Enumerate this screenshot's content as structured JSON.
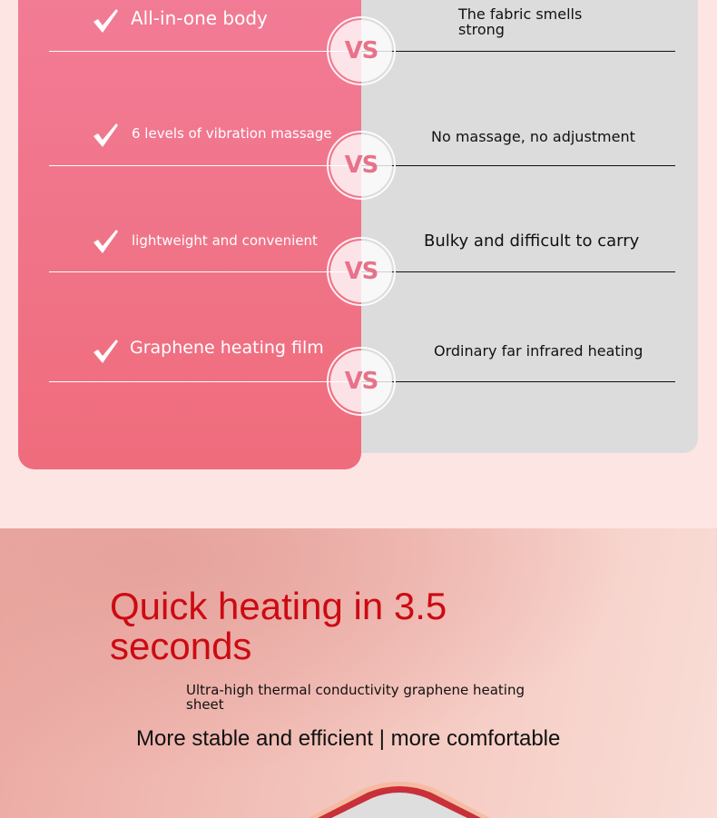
{
  "comparison": {
    "rows": [
      {
        "ours": "All-in-one body",
        "theirs": "The fabric smells strong",
        "vs": "VS"
      },
      {
        "ours": "6 levels of vibration massage",
        "theirs": "No massage, no adjustment",
        "vs": "VS"
      },
      {
        "ours": "lightweight and convenient",
        "theirs": "Bulky and difficult to carry",
        "vs": "VS"
      },
      {
        "ours": "Graphene heating film",
        "theirs": "Ordinary far infrared heating",
        "vs": "VS"
      }
    ],
    "colors": {
      "ours_panel": "#f27c96",
      "theirs_panel": "#dcdcdc",
      "vs_text": "#e8728a"
    }
  },
  "feature": {
    "title": "Quick heating in 3.5 seconds",
    "subtitle": "Ultra-high thermal conductivity graphene heating sheet",
    "tagline": "More stable and efficient | more comfortable",
    "title_color": "#cc0a12"
  }
}
